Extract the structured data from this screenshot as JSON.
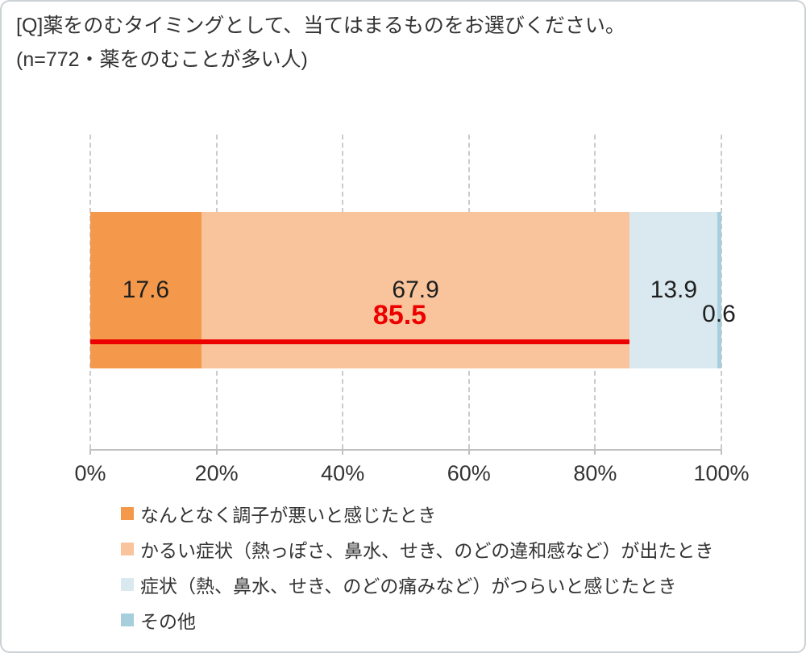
{
  "title": "[Q]薬をのむタイミングとして、当てはまるものをお選びください。",
  "subtitle": "(n=772・薬をのむことが多い人)",
  "chart_data": {
    "type": "bar",
    "subtype": "horizontal-stacked",
    "title": "[Q]薬をのむタイミングとして、当てはまるものをお選びください。",
    "sample_note": "(n=772・薬をのむことが多い人)",
    "unit": "%",
    "categories": [
      "薬をのむことが多い人"
    ],
    "series": [
      {
        "name": "なんとなく調子が悪いと感じたとき",
        "value": 17.6,
        "label": "17.6",
        "color": "#F4994B",
        "label_position": "inside"
      },
      {
        "name": "かるい症状（熱っぽさ、鼻水、せき、のどの違和感など）が出たとき",
        "value": 67.9,
        "label": "67.9",
        "color": "#F9C49B",
        "label_position": "inside"
      },
      {
        "name": "症状（熱、鼻水、せき、のどの痛みなど）がつらいと感じたとき",
        "value": 13.9,
        "label": "13.9",
        "color": "#DAE9F0",
        "label_position": "inside"
      },
      {
        "name": "その他",
        "value": 0.6,
        "label": "0.6",
        "color": "#A6CEDD",
        "label_position": "outside"
      }
    ],
    "annotation": {
      "label": "85.5",
      "value": 85.5,
      "color": "#ED0000",
      "meaning": "sum of first two segments, marked with a red underline from 0% to 85.5%"
    },
    "x_axis": {
      "min": 0,
      "max": 100,
      "ticks": [
        "0%",
        "20%",
        "40%",
        "60%",
        "80%",
        "100%"
      ],
      "grid": "vertical-dashed"
    },
    "legend_position": "bottom-left",
    "colors": {
      "grid": "#cbcbcb",
      "axis": "#c0c0c0",
      "text": "#333333"
    }
  }
}
